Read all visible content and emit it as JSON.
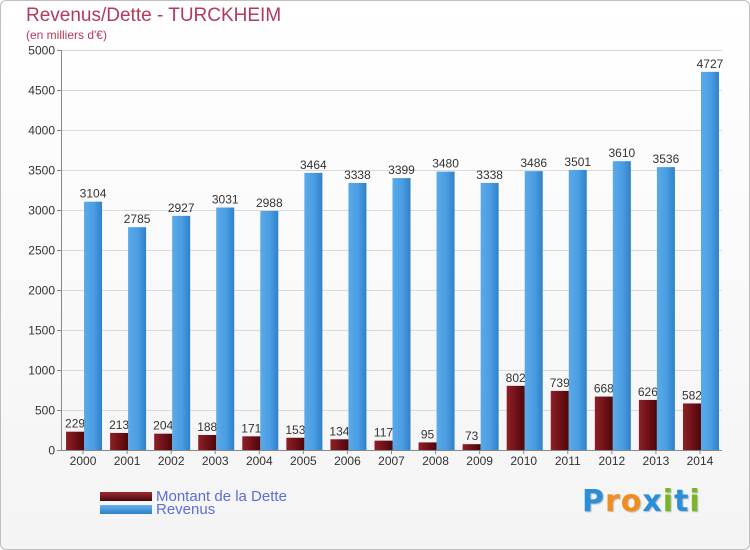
{
  "chart_data": {
    "type": "bar",
    "title": "Revenus/Dette - TURCKHEIM",
    "subtitle": "(en milliers d'€)",
    "categories": [
      "2000",
      "2001",
      "2002",
      "2003",
      "2004",
      "2005",
      "2006",
      "2007",
      "2008",
      "2009",
      "2010",
      "2011",
      "2012",
      "2013",
      "2014"
    ],
    "series": [
      {
        "name": "Montant de la Dette",
        "color": "#6b0f14",
        "values": [
          229,
          213,
          204,
          188,
          171,
          153,
          134,
          117,
          95,
          73,
          802,
          739,
          668,
          626,
          582
        ]
      },
      {
        "name": "Revenus",
        "color": "#3d93dc",
        "values": [
          3104,
          2785,
          2927,
          3031,
          2988,
          3464,
          3338,
          3399,
          3480,
          3338,
          3486,
          3501,
          3610,
          3536,
          4727
        ]
      }
    ],
    "ylim": [
      0,
      5000
    ],
    "yticks": [
      0,
      500,
      1000,
      1500,
      2000,
      2500,
      3000,
      3500,
      4000,
      4500,
      5000
    ],
    "xlabel": "",
    "ylabel": "",
    "grid": true
  },
  "legend": {
    "debt_label": "Montant de la Dette",
    "revenue_label": "Revenus"
  },
  "logo": {
    "letters": [
      "P",
      "r",
      "o",
      "x",
      "i",
      "t",
      "i"
    ],
    "colors": [
      "#2a8fd8",
      "#f28c1e",
      "#f28c1e",
      "#2a8fd8",
      "#7ab527",
      "#2a8fd8",
      "#7ab527"
    ]
  }
}
